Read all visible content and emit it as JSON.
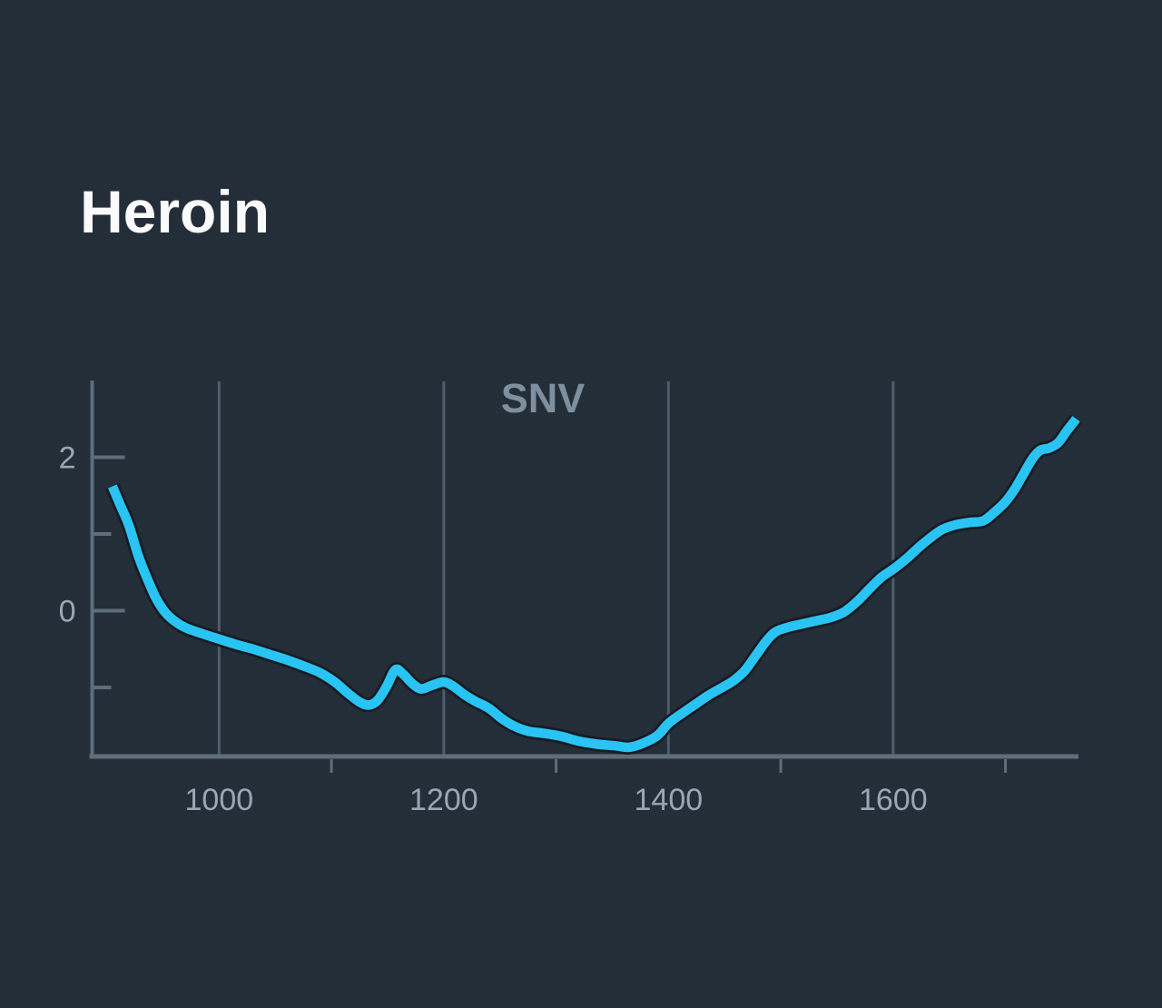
{
  "title": "Heroin",
  "colors": {
    "background": "#242e38",
    "title": "#fafafa",
    "annotation": "#7e90a0",
    "axis": "#5d6e7a",
    "gridline": "#4f5d69",
    "tick_label": "#9aa7b2",
    "line": "#29c4f4",
    "line_halo": "#171c22"
  },
  "chart_data": {
    "type": "line",
    "title": "Heroin",
    "annotation": "SNV",
    "legend_position": "top-center",
    "grid": "vertical-only",
    "x_axis": {
      "min": 887,
      "max": 1765,
      "labeled_ticks": [
        1000,
        1200,
        1400,
        1600
      ],
      "minor_ticks": [
        1100,
        1300,
        1500,
        1700
      ],
      "gridlines_at_labeled_ticks": true
    },
    "y_axis": {
      "min": -1.9,
      "max": 3.0,
      "labeled_ticks": [
        2,
        0
      ],
      "minor_ticks": [
        1,
        -1
      ]
    },
    "series": [
      {
        "name": "SNV",
        "color": "#29c4f4",
        "x": [
          905,
          912,
          920,
          928,
          936,
          944,
          952,
          960,
          970,
          985,
          1000,
          1015,
          1030,
          1045,
          1060,
          1075,
          1090,
          1103,
          1115,
          1125,
          1133,
          1141,
          1149,
          1157,
          1164,
          1172,
          1180,
          1190,
          1200,
          1208,
          1218,
          1228,
          1240,
          1252,
          1262,
          1275,
          1290,
          1305,
          1320,
          1337,
          1352,
          1365,
          1377,
          1390,
          1400,
          1412,
          1424,
          1436,
          1448,
          1458,
          1468,
          1478,
          1488,
          1496,
          1508,
          1520,
          1532,
          1544,
          1556,
          1568,
          1580,
          1590,
          1600,
          1612,
          1624,
          1634,
          1644,
          1656,
          1668,
          1680,
          1690,
          1700,
          1708,
          1716,
          1724,
          1731,
          1739,
          1747,
          1755,
          1763
        ],
        "y": [
          1.62,
          1.38,
          1.1,
          0.72,
          0.42,
          0.16,
          -0.02,
          -0.13,
          -0.22,
          -0.3,
          -0.37,
          -0.44,
          -0.5,
          -0.57,
          -0.64,
          -0.72,
          -0.81,
          -0.93,
          -1.08,
          -1.19,
          -1.23,
          -1.17,
          -0.99,
          -0.77,
          -0.83,
          -0.95,
          -1.02,
          -0.97,
          -0.93,
          -0.98,
          -1.09,
          -1.18,
          -1.27,
          -1.41,
          -1.5,
          -1.57,
          -1.6,
          -1.64,
          -1.7,
          -1.74,
          -1.76,
          -1.78,
          -1.73,
          -1.63,
          -1.47,
          -1.34,
          -1.22,
          -1.1,
          -1.0,
          -0.91,
          -0.78,
          -0.58,
          -0.38,
          -0.27,
          -0.21,
          -0.17,
          -0.13,
          -0.09,
          -0.02,
          0.12,
          0.3,
          0.44,
          0.54,
          0.68,
          0.84,
          0.96,
          1.06,
          1.12,
          1.15,
          1.17,
          1.28,
          1.42,
          1.58,
          1.78,
          1.98,
          2.09,
          2.12,
          2.19,
          2.35,
          2.5
        ]
      }
    ]
  }
}
